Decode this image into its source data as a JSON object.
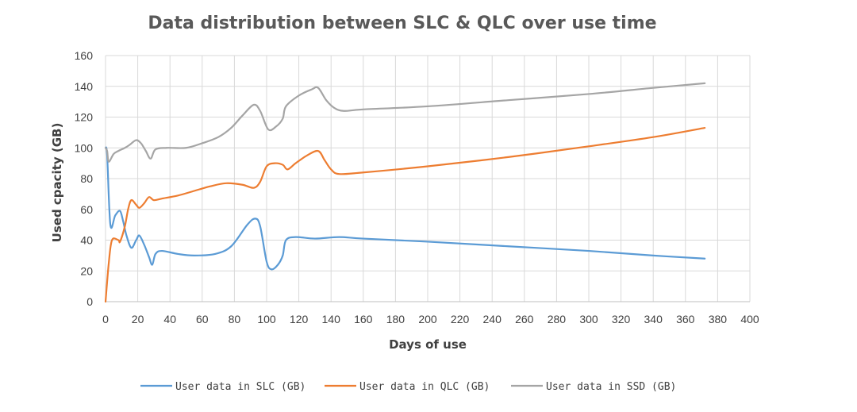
{
  "chart_data": {
    "type": "line",
    "title": "Data distribution between SLC & QLC over use time",
    "xlabel": "Days of use",
    "ylabel": "Used cpacity (GB)",
    "xlim": [
      0,
      400
    ],
    "ylim": [
      0,
      160
    ],
    "xticks": [
      0,
      20,
      40,
      60,
      80,
      100,
      120,
      140,
      160,
      180,
      200,
      220,
      240,
      260,
      280,
      300,
      320,
      340,
      360,
      380,
      400
    ],
    "yticks": [
      0,
      20,
      40,
      60,
      80,
      100,
      120,
      140,
      160
    ],
    "grid": true,
    "legend_position": "bottom",
    "series": [
      {
        "name": "User data in SLC (GB)",
        "color": "#5b9bd5",
        "points": [
          [
            0,
            100
          ],
          [
            1,
            95
          ],
          [
            3,
            50
          ],
          [
            6,
            56
          ],
          [
            9,
            59
          ],
          [
            11,
            52
          ],
          [
            13,
            43
          ],
          [
            16,
            35
          ],
          [
            19,
            40
          ],
          [
            21,
            43
          ],
          [
            24,
            37
          ],
          [
            27,
            29
          ],
          [
            29,
            24
          ],
          [
            31,
            31
          ],
          [
            35,
            33
          ],
          [
            45,
            31
          ],
          [
            55,
            30
          ],
          [
            68,
            31
          ],
          [
            78,
            36
          ],
          [
            88,
            50
          ],
          [
            93,
            54
          ],
          [
            96,
            49
          ],
          [
            100,
            26
          ],
          [
            103,
            21
          ],
          [
            107,
            24
          ],
          [
            110,
            30
          ],
          [
            112,
            40
          ],
          [
            118,
            42
          ],
          [
            130,
            41
          ],
          [
            145,
            42
          ],
          [
            160,
            41
          ],
          [
            200,
            39
          ],
          [
            250,
            36
          ],
          [
            300,
            33
          ],
          [
            340,
            30
          ],
          [
            372,
            28
          ]
        ]
      },
      {
        "name": "User data in QLC (GB)",
        "color": "#ed7d31",
        "points": [
          [
            0,
            0
          ],
          [
            2,
            25
          ],
          [
            4,
            40
          ],
          [
            8,
            40
          ],
          [
            9,
            39
          ],
          [
            12,
            49
          ],
          [
            14,
            60
          ],
          [
            16,
            66
          ],
          [
            19,
            63
          ],
          [
            21,
            61
          ],
          [
            24,
            64
          ],
          [
            27,
            68
          ],
          [
            30,
            66
          ],
          [
            35,
            67
          ],
          [
            45,
            69
          ],
          [
            55,
            72
          ],
          [
            65,
            75
          ],
          [
            75,
            77
          ],
          [
            85,
            76
          ],
          [
            92,
            74
          ],
          [
            96,
            78
          ],
          [
            100,
            88
          ],
          [
            105,
            90
          ],
          [
            110,
            89
          ],
          [
            113,
            86
          ],
          [
            118,
            90
          ],
          [
            125,
            95
          ],
          [
            132,
            98
          ],
          [
            136,
            92
          ],
          [
            140,
            86
          ],
          [
            145,
            83
          ],
          [
            160,
            84
          ],
          [
            200,
            88
          ],
          [
            250,
            94
          ],
          [
            300,
            101
          ],
          [
            340,
            107
          ],
          [
            372,
            113
          ]
        ]
      },
      {
        "name": "User data in SSD (GB)",
        "color": "#a5a5a5",
        "points": [
          [
            0,
            100
          ],
          [
            1,
            98
          ],
          [
            2,
            91
          ],
          [
            5,
            96
          ],
          [
            8,
            98
          ],
          [
            12,
            100
          ],
          [
            15,
            102
          ],
          [
            19,
            105
          ],
          [
            22,
            103
          ],
          [
            25,
            98
          ],
          [
            28,
            93
          ],
          [
            31,
            99
          ],
          [
            38,
            100
          ],
          [
            50,
            100
          ],
          [
            60,
            103
          ],
          [
            70,
            107
          ],
          [
            78,
            113
          ],
          [
            85,
            121
          ],
          [
            92,
            128
          ],
          [
            96,
            124
          ],
          [
            101,
            112
          ],
          [
            106,
            114
          ],
          [
            110,
            119
          ],
          [
            112,
            127
          ],
          [
            120,
            134
          ],
          [
            128,
            138
          ],
          [
            132,
            139
          ],
          [
            137,
            131
          ],
          [
            142,
            126
          ],
          [
            148,
            124
          ],
          [
            160,
            125
          ],
          [
            200,
            127
          ],
          [
            250,
            131
          ],
          [
            300,
            135
          ],
          [
            340,
            139
          ],
          [
            372,
            142
          ]
        ]
      }
    ]
  }
}
